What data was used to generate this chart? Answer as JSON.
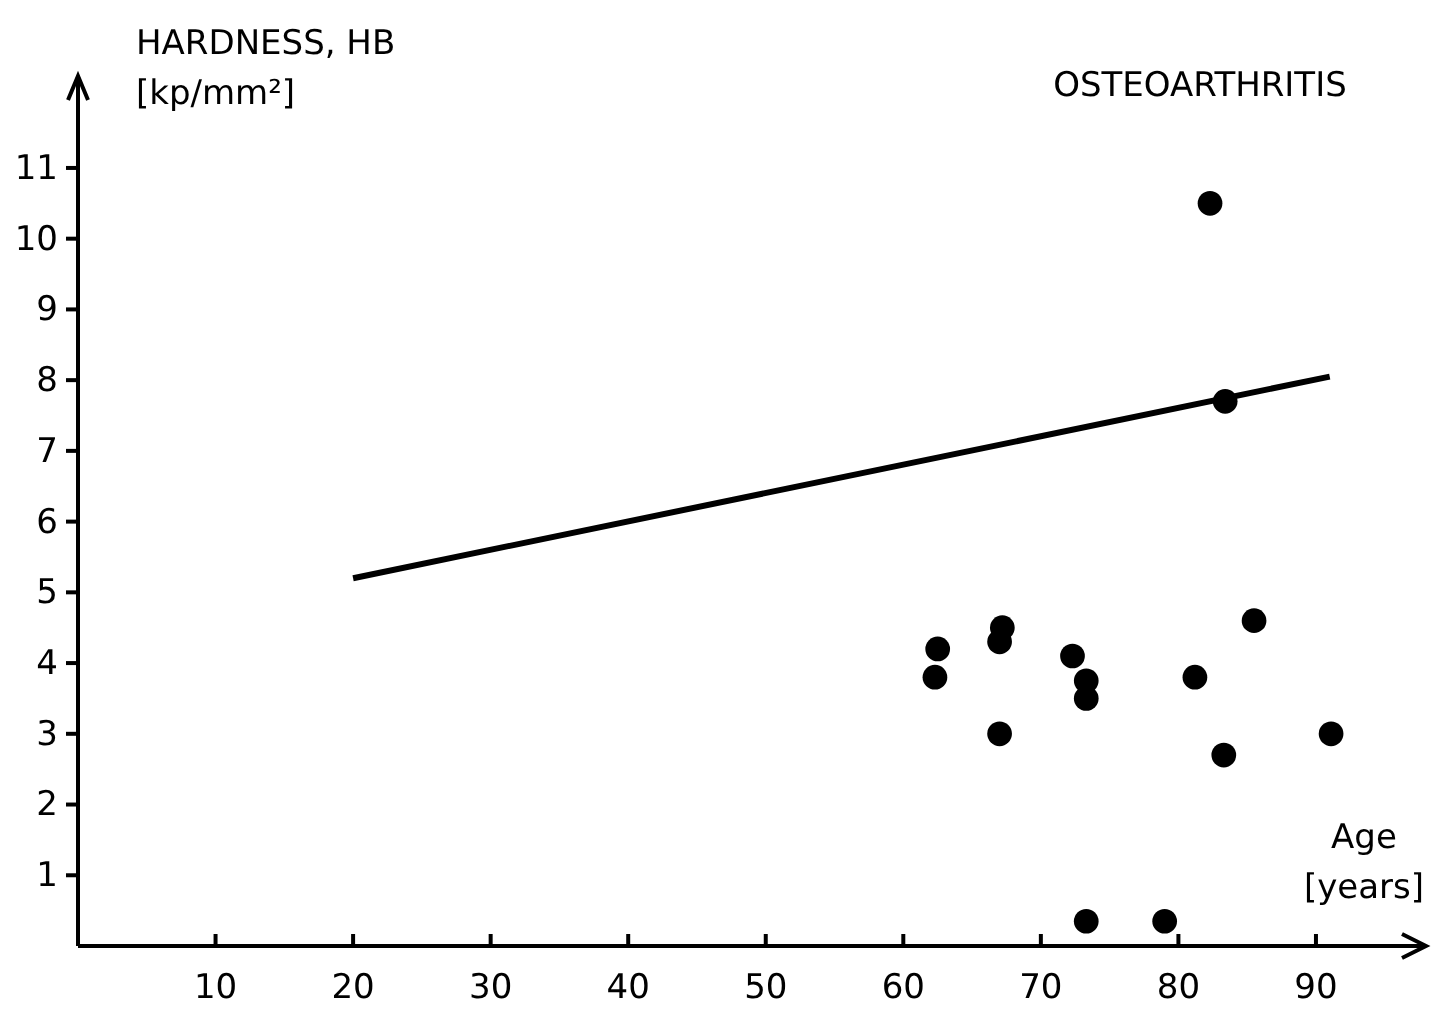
{
  "chart_data": {
    "type": "scatter",
    "title": "OSTEOARTHRITIS",
    "xlabel": "Age [years]",
    "ylabel": "HARDNESS, HB [kp/mm²]",
    "xlim": [
      0,
      98
    ],
    "ylim": [
      0,
      12.3
    ],
    "xticks": [
      10,
      20,
      30,
      40,
      50,
      60,
      70,
      80,
      90
    ],
    "yticks": [
      1,
      2,
      3,
      4,
      5,
      6,
      7,
      8,
      9,
      10,
      11
    ],
    "grid": false,
    "marker": "circle",
    "series": [
      {
        "color": "#000000",
        "x": [
          62.5,
          62.3,
          67.2,
          67,
          67,
          72.3,
          73.3,
          73.3,
          73.3,
          79,
          81.2,
          82.3,
          83.4,
          83.3,
          85.5,
          91.1
        ],
        "values": [
          4.2,
          3.8,
          4.5,
          4.3,
          3.0,
          4.1,
          3.75,
          3.5,
          0.35,
          0.35,
          3.8,
          10.5,
          7.7,
          2.7,
          4.6,
          3.0
        ]
      },
      {
        "type": "line",
        "color": "#000000",
        "line_style": "solid",
        "marker": "none",
        "x": [
          20,
          91
        ],
        "values": [
          5.2,
          8.05
        ]
      }
    ]
  }
}
